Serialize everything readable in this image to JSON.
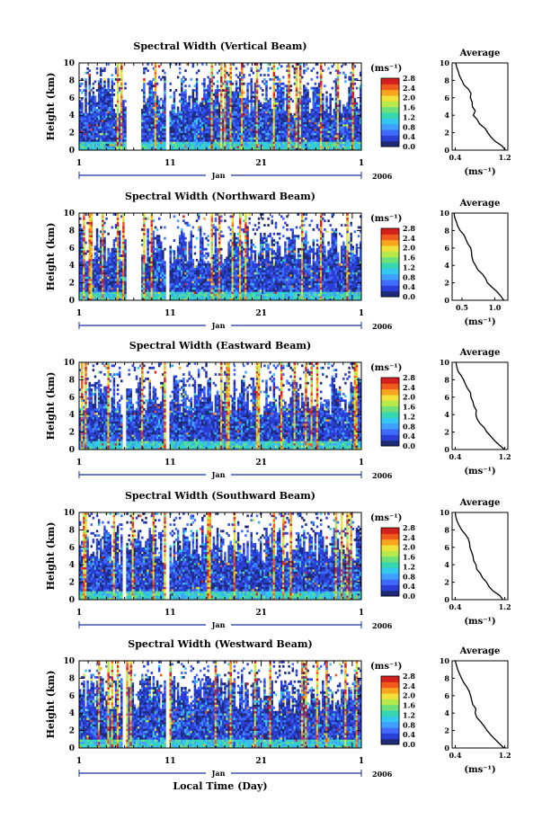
{
  "figure": {
    "xlabel": "Local Time (Day)",
    "month_label": "Jan",
    "year_label": "2006",
    "x_ticks": [
      "1",
      "11",
      "21",
      "1"
    ],
    "colorbar_unit": "(ms⁻¹)",
    "colorbar_ticks": [
      "0.0",
      "0.4",
      "0.8",
      "1.2",
      "1.6",
      "2.0",
      "2.4",
      "2.8"
    ],
    "profile_title": "Average",
    "profile_xlabel": "(ms⁻¹)",
    "colors": {
      "cmap": [
        "#1e2a78",
        "#2a3fd6",
        "#3f6bff",
        "#3fa0ff",
        "#33c8f0",
        "#36d6b0",
        "#6ee07a",
        "#b6ea4a",
        "#f0e23a",
        "#f7a41f",
        "#f05a1c",
        "#d4201c"
      ],
      "line": "#000000"
    }
  },
  "chart_data": [
    {
      "type": "heatmap",
      "title": "Spectral Width (Vertical Beam)",
      "ylabel": "Height (km)",
      "y_ticks": [
        "0",
        "2",
        "4",
        "6",
        "8",
        "10"
      ],
      "ylim": [
        0,
        10
      ],
      "xlim_days": [
        1,
        32
      ],
      "zlim": [
        0.0,
        2.8
      ],
      "data_gap_days": [
        [
          6.2,
          7.8
        ],
        [
          10.6,
          10.9
        ]
      ],
      "profile": {
        "title": "Average",
        "x_ticks": [
          "0.4",
          "1.2"
        ],
        "x_tick_values": [
          0.4,
          1.2
        ],
        "xlim": [
          0.35,
          1.25
        ],
        "heights": [
          0,
          0.5,
          1,
          1.5,
          2,
          2.5,
          3,
          3.5,
          4,
          4.5,
          5,
          5.5,
          6,
          6.5,
          7,
          7.5,
          8,
          8.5,
          9,
          9.5,
          10
        ],
        "values": [
          1.22,
          1.15,
          1.05,
          0.98,
          0.93,
          0.88,
          0.8,
          0.75,
          0.7,
          0.72,
          0.68,
          0.66,
          0.65,
          0.64,
          0.6,
          0.55,
          0.5,
          0.47,
          0.44,
          0.42,
          0.4
        ]
      }
    },
    {
      "type": "heatmap",
      "title": "Spectral Width (Northward Beam)",
      "ylabel": "Height (km)",
      "y_ticks": [
        "0",
        "2",
        "4",
        "6",
        "8",
        "10"
      ],
      "ylim": [
        0,
        10
      ],
      "xlim_days": [
        1,
        32
      ],
      "zlim": [
        0.0,
        2.8
      ],
      "data_gap_days": [
        [
          6.2,
          7.8
        ],
        [
          10.6,
          10.9
        ]
      ],
      "profile": {
        "title": "Average",
        "x_ticks": [
          "0.5",
          "1.0"
        ],
        "x_tick_values": [
          0.5,
          1.0
        ],
        "xlim": [
          0.35,
          1.2
        ],
        "heights": [
          0,
          0.5,
          1,
          1.5,
          2,
          2.5,
          3,
          3.5,
          4,
          4.5,
          5,
          5.5,
          6,
          6.5,
          7,
          7.5,
          8,
          8.5,
          9,
          9.5,
          10
        ],
        "values": [
          1.15,
          1.1,
          1.02,
          0.95,
          0.9,
          0.85,
          0.8,
          0.75,
          0.72,
          0.68,
          0.66,
          0.64,
          0.62,
          0.6,
          0.56,
          0.52,
          0.48,
          0.45,
          0.42,
          0.4,
          0.38
        ]
      }
    },
    {
      "type": "heatmap",
      "title": "Spectral Width (Eastward Beam)",
      "ylabel": "Height (km)",
      "y_ticks": [
        "0",
        "2",
        "4",
        "6",
        "8",
        "10"
      ],
      "ylim": [
        0,
        10
      ],
      "xlim_days": [
        1,
        32
      ],
      "zlim": [
        0.0,
        2.8
      ],
      "data_gap_days": [
        [
          5.8,
          6.2
        ],
        [
          10.6,
          10.9
        ]
      ],
      "profile": {
        "title": "Average",
        "x_ticks": [
          "0.4",
          "1.2"
        ],
        "x_tick_values": [
          0.4,
          1.2
        ],
        "xlim": [
          0.35,
          1.25
        ],
        "heights": [
          0,
          0.5,
          1,
          1.5,
          2,
          2.5,
          3,
          3.5,
          4,
          4.5,
          5,
          5.5,
          6,
          6.5,
          7,
          7.5,
          8,
          8.5,
          9,
          9.5,
          10
        ],
        "values": [
          1.2,
          1.12,
          1.04,
          0.97,
          0.92,
          0.86,
          0.8,
          0.76,
          0.72,
          0.74,
          0.7,
          0.68,
          0.66,
          0.64,
          0.6,
          0.56,
          0.52,
          0.48,
          0.45,
          0.42,
          0.4
        ]
      }
    },
    {
      "type": "heatmap",
      "title": "Spectral Width (Southward Beam)",
      "ylabel": "Height (km)",
      "y_ticks": [
        "0",
        "2",
        "4",
        "6",
        "8",
        "10"
      ],
      "ylim": [
        0,
        10
      ],
      "xlim_days": [
        1,
        32
      ],
      "zlim": [
        0.0,
        2.8
      ],
      "data_gap_days": [
        [
          5.8,
          6.2
        ],
        [
          10.6,
          10.9
        ]
      ],
      "profile": {
        "title": "Average",
        "x_ticks": [
          "0.4",
          "1.2"
        ],
        "x_tick_values": [
          0.4,
          1.2
        ],
        "xlim": [
          0.35,
          1.25
        ],
        "heights": [
          0,
          0.5,
          1,
          1.5,
          2,
          2.5,
          3,
          3.5,
          4,
          4.5,
          5,
          5.5,
          6,
          6.5,
          7,
          7.5,
          8,
          8.5,
          9,
          9.5,
          10
        ],
        "values": [
          1.18,
          1.1,
          1.02,
          0.96,
          0.9,
          0.85,
          0.8,
          0.76,
          0.72,
          0.7,
          0.68,
          0.66,
          0.65,
          0.63,
          0.6,
          0.55,
          0.5,
          0.47,
          0.44,
          0.42,
          0.4
        ]
      }
    },
    {
      "type": "heatmap",
      "title": "Spectral Width (Westward Beam)",
      "ylabel": "Height (km)",
      "y_ticks": [
        "0",
        "2",
        "4",
        "6",
        "8",
        "10"
      ],
      "ylim": [
        0,
        10
      ],
      "xlim_days": [
        1,
        32
      ],
      "zlim": [
        0.0,
        2.8
      ],
      "data_gap_days": [
        [
          5.8,
          6.2
        ],
        [
          10.6,
          10.9
        ]
      ],
      "profile": {
        "title": "Average",
        "x_ticks": [
          "0.4",
          "1.2"
        ],
        "x_tick_values": [
          0.4,
          1.2
        ],
        "xlim": [
          0.35,
          1.25
        ],
        "heights": [
          0,
          0.5,
          1,
          1.5,
          2,
          2.5,
          3,
          3.5,
          4,
          4.5,
          5,
          5.5,
          6,
          6.5,
          7,
          7.5,
          8,
          8.5,
          9,
          9.5,
          10
        ],
        "values": [
          1.2,
          1.12,
          1.05,
          0.98,
          0.92,
          0.86,
          0.8,
          0.76,
          0.72,
          0.73,
          0.69,
          0.67,
          0.65,
          0.63,
          0.6,
          0.55,
          0.51,
          0.47,
          0.44,
          0.42,
          0.4
        ]
      }
    }
  ]
}
